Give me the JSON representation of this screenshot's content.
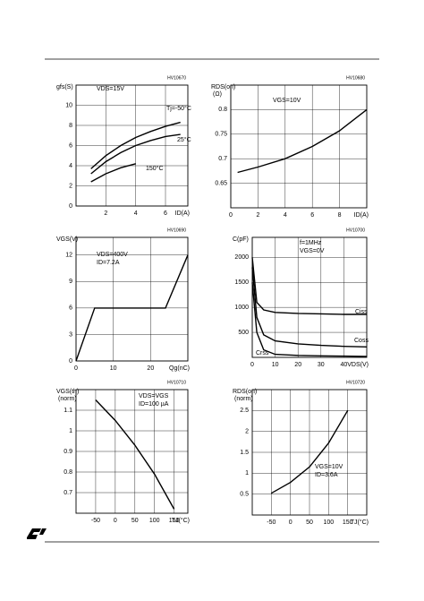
{
  "chart_data": [
    {
      "type": "line",
      "title": "gfs(S)",
      "code": "HV10670",
      "xlabel": "ID(A)",
      "annotations": [
        "VDS=15V"
      ],
      "xlim": [
        0,
        7.5
      ],
      "xticks": [
        2,
        4,
        6
      ],
      "ylim": [
        0,
        12
      ],
      "yticks": [
        0,
        2,
        4,
        6,
        8,
        10
      ],
      "grid": true,
      "series": [
        {
          "name": "Tj=-50°C",
          "color": "#000000",
          "x": [
            1,
            2,
            3,
            4,
            5,
            6,
            7
          ],
          "values": [
            3.7,
            5.0,
            6.0,
            6.8,
            7.4,
            7.9,
            8.3
          ]
        },
        {
          "name": "25°C",
          "color": "#000000",
          "x": [
            1,
            2,
            3,
            4,
            5,
            6,
            7
          ],
          "values": [
            3.2,
            4.4,
            5.3,
            6.0,
            6.5,
            6.9,
            7.1
          ]
        },
        {
          "name": "150°C",
          "color": "#000000",
          "x": [
            1,
            2,
            3,
            4
          ],
          "values": [
            2.4,
            3.2,
            3.8,
            4.2
          ]
        }
      ]
    },
    {
      "type": "line",
      "title": "RDS(on)",
      "subtitle": "(Ω)",
      "code": "HV10680",
      "xlabel": "ID(A)",
      "annotations": [
        "VGS=10V"
      ],
      "xlim": [
        0,
        10
      ],
      "xticks": [
        0,
        2,
        4,
        6,
        8
      ],
      "ylim": [
        0.6,
        0.85
      ],
      "yticks": [
        0.65,
        0.7,
        0.75,
        0.8
      ],
      "grid": true,
      "series": [
        {
          "color": "#000000",
          "x": [
            0.5,
            2,
            4,
            6,
            8,
            10
          ],
          "values": [
            0.672,
            0.683,
            0.7,
            0.725,
            0.757,
            0.8
          ]
        }
      ]
    },
    {
      "type": "line",
      "title": "VGS(V)",
      "code": "HV10690",
      "xlabel": "Qg(nC)",
      "annotations": [
        "VDS=400V",
        "ID=7.2A"
      ],
      "xlim": [
        0,
        30
      ],
      "xticks": [
        0,
        10,
        20
      ],
      "ylim": [
        0,
        14
      ],
      "yticks": [
        0,
        3,
        6,
        9,
        12
      ],
      "grid": true,
      "series": [
        {
          "color": "#000000",
          "x": [
            0,
            5,
            24,
            30
          ],
          "values": [
            0,
            6,
            6,
            12
          ]
        }
      ]
    },
    {
      "type": "line",
      "title": "C(pF)",
      "code": "HV10700",
      "xlabel": "VDS(V)",
      "annotations": [
        "f=1MHz",
        "VGS=0V"
      ],
      "xlim": [
        0,
        50
      ],
      "xticks": [
        0,
        10,
        20,
        30,
        40
      ],
      "ylim": [
        0,
        2400
      ],
      "yticks": [
        500,
        1000,
        1500,
        2000
      ],
      "grid": true,
      "series": [
        {
          "name": "Ciss",
          "color": "#000000",
          "x": [
            0,
            2,
            5,
            10,
            20,
            30,
            40,
            50
          ],
          "values": [
            2000,
            1100,
            950,
            900,
            880,
            870,
            860,
            860
          ]
        },
        {
          "name": "Coss",
          "color": "#000000",
          "x": [
            0,
            2,
            5,
            10,
            20,
            30,
            40,
            50
          ],
          "values": [
            1800,
            800,
            450,
            330,
            270,
            240,
            220,
            210
          ]
        },
        {
          "name": "Crss",
          "color": "#000000",
          "x": [
            0,
            2,
            5,
            10,
            20,
            30,
            40,
            50
          ],
          "values": [
            1500,
            500,
            150,
            60,
            40,
            30,
            25,
            20
          ]
        }
      ]
    },
    {
      "type": "line",
      "title": "VGS(th)",
      "subtitle": "(norm)",
      "code": "HV10710",
      "xlabel": "TJ(°C)",
      "annotations": [
        "VDS=VGS",
        "ID=100 µA"
      ],
      "xlim": [
        -100,
        185
      ],
      "xticks": [
        -50,
        0,
        50,
        100,
        150
      ],
      "ylim": [
        0.6,
        1.2
      ],
      "yticks": [
        0.7,
        0.8,
        0.9,
        1,
        1.1
      ],
      "grid": true,
      "series": [
        {
          "color": "#000000",
          "x": [
            -50,
            0,
            50,
            100,
            150
          ],
          "values": [
            1.15,
            1.05,
            0.93,
            0.79,
            0.62
          ]
        }
      ]
    },
    {
      "type": "line",
      "title": "RDS(on)",
      "subtitle": "(norm)",
      "code": "HV10720",
      "xlabel": "TJ(°C)",
      "annotations": [
        "VGS=10V",
        "ID=3.6A"
      ],
      "xlim": [
        -100,
        200
      ],
      "xticks": [
        -50,
        0,
        50,
        100,
        150
      ],
      "ylim": [
        0,
        3
      ],
      "yticks": [
        0.5,
        1,
        1.5,
        2,
        2.5
      ],
      "grid": true,
      "series": [
        {
          "color": "#000000",
          "x": [
            -50,
            0,
            50,
            100,
            150
          ],
          "values": [
            0.52,
            0.78,
            1.15,
            1.72,
            2.5
          ]
        }
      ]
    }
  ]
}
